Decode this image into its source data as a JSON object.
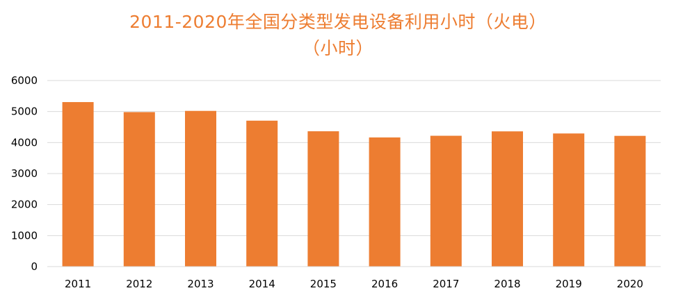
{
  "chart_data": {
    "type": "bar",
    "title": "2011-2020年全国分类型发电设备利用小时（火电）",
    "subtitle": "（小时）",
    "categories": [
      "2011",
      "2012",
      "2013",
      "2014",
      "2015",
      "2016",
      "2017",
      "2018",
      "2019",
      "2020"
    ],
    "values": [
      5305,
      4982,
      5021,
      4706,
      4364,
      4165,
      4219,
      4361,
      4293,
      4216
    ],
    "ylim": [
      0,
      6000
    ],
    "yticks": [
      "0",
      "1000",
      "2000",
      "3000",
      "4000",
      "5000",
      "6000"
    ],
    "xlabel": "",
    "ylabel": "",
    "grid": true,
    "legend": "none",
    "bar_color": "#ED7D31",
    "title_color": "#ED7D31",
    "grid_color": "#D9D9D9"
  }
}
